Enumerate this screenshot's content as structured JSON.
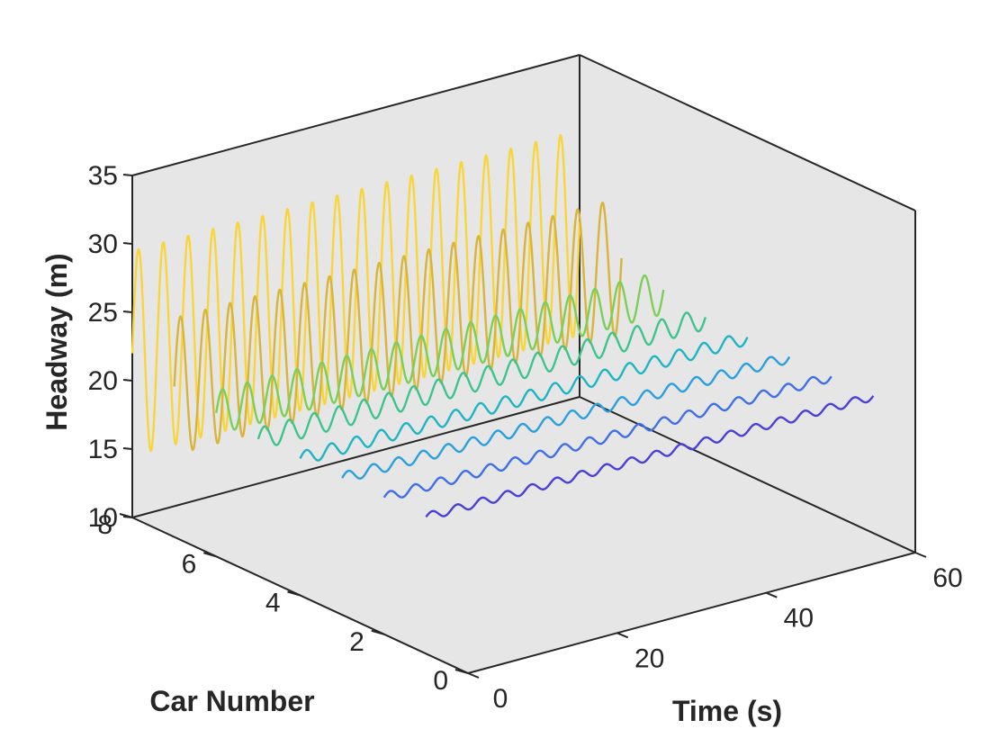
{
  "chart_data": {
    "type": "line-3d",
    "title": "",
    "xlabel": "Time (s)",
    "ylabel": "Car Number",
    "zlabel": "Headway (m)",
    "xlim": [
      0,
      60
    ],
    "ylim": [
      0,
      8
    ],
    "zlim": [
      10,
      35
    ],
    "xticks": [
      "0",
      "20",
      "40",
      "60"
    ],
    "yticks": [
      "0",
      "2",
      "4",
      "6",
      "8"
    ],
    "zticks": [
      "10",
      "15",
      "20",
      "25",
      "30",
      "35"
    ],
    "grid": false,
    "pane_color": "#e6e6e6",
    "series": [
      {
        "car": 8,
        "x_range": [
          0,
          60
        ],
        "baseline": 22,
        "amplitude": 7.5,
        "period": 3.33,
        "color": "#f9d53c"
      },
      {
        "car": 7,
        "x_range": [
          0,
          60
        ],
        "baseline": 21,
        "amplitude": 5.0,
        "period": 3.33,
        "color": "#d9b43a"
      },
      {
        "car": 6,
        "x_range": [
          0,
          60
        ],
        "baseline": 20.5,
        "amplitude": 1.6,
        "period": 3.33,
        "color": "#7ccf56"
      },
      {
        "car": 5,
        "x_range": [
          0,
          60
        ],
        "baseline": 20,
        "amplitude": 0.8,
        "period": 3.33,
        "color": "#3cc48c"
      },
      {
        "car": 4,
        "x_range": [
          0,
          60
        ],
        "baseline": 20,
        "amplitude": 0.5,
        "period": 3.33,
        "color": "#1fb4c4"
      },
      {
        "car": 3,
        "x_range": [
          0,
          60
        ],
        "baseline": 20,
        "amplitude": 0.4,
        "period": 3.33,
        "color": "#2a9fe0"
      },
      {
        "car": 2,
        "x_range": [
          0,
          60
        ],
        "baseline": 20,
        "amplitude": 0.35,
        "period": 3.33,
        "color": "#3f6fe6"
      },
      {
        "car": 1,
        "x_range": [
          0,
          60
        ],
        "baseline": 20,
        "amplitude": 0.3,
        "period": 3.33,
        "color": "#4a3fd6"
      }
    ]
  }
}
